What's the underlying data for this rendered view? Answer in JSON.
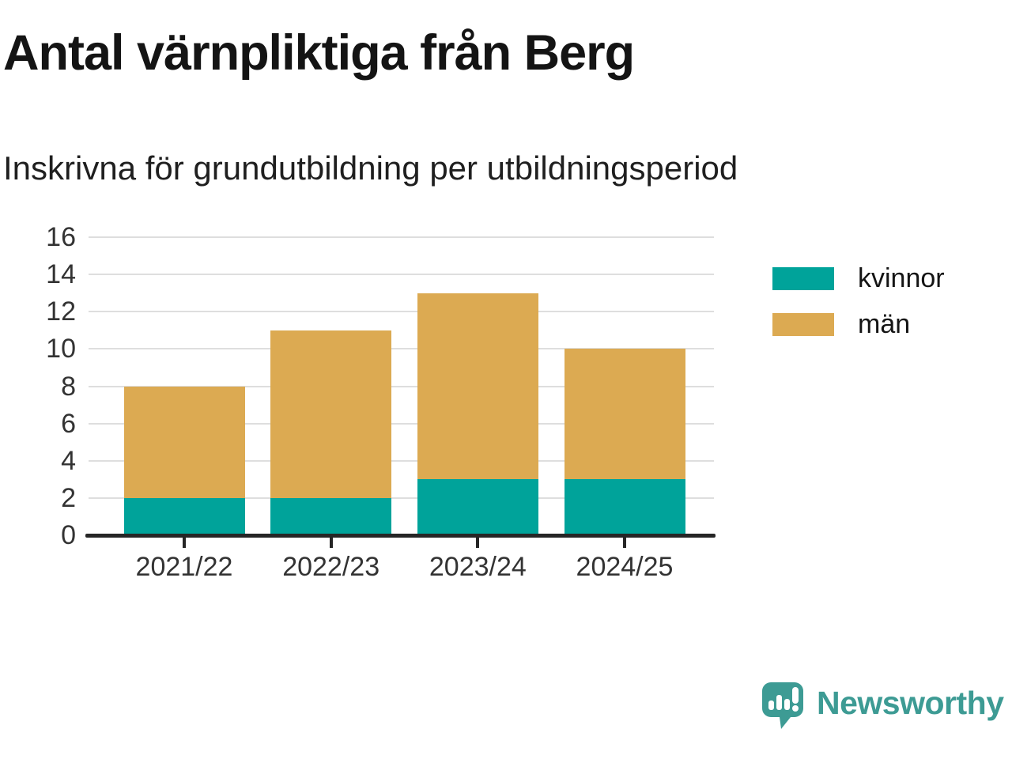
{
  "header": {
    "title": "Antal värnpliktiga från Berg",
    "subtitle": "Inskrivna för grundutbildning per utbildningsperiod"
  },
  "chart_data": {
    "type": "bar",
    "stacked": true,
    "title": "Antal värnpliktiga från Berg",
    "subtitle": "Inskrivna för grundutbildning per utbildningsperiod",
    "categories": [
      "2021/22",
      "2022/23",
      "2023/24",
      "2024/25"
    ],
    "series": [
      {
        "name": "kvinnor",
        "color": "#00a39a",
        "values": [
          2,
          2,
          3,
          3
        ]
      },
      {
        "name": "män",
        "color": "#dcaa52",
        "values": [
          6,
          9,
          10,
          7
        ]
      }
    ],
    "stack_totals": [
      8,
      11,
      13,
      10
    ],
    "xlabel": "",
    "ylabel": "",
    "ylim": [
      0,
      16
    ],
    "yticks": [
      0,
      2,
      4,
      6,
      8,
      10,
      12,
      14,
      16
    ],
    "grid": true,
    "gridline_color": "#dedede",
    "axis_color": "#262626",
    "legend_position": "right"
  },
  "legend": {
    "items": [
      {
        "label": "kvinnor",
        "color": "#00a39a"
      },
      {
        "label": "män",
        "color": "#dcaa52"
      }
    ]
  },
  "logo": {
    "text": "Newsworthy",
    "color": "#3d9b94",
    "icon": "speech-bubble-bar-chart-icon"
  }
}
